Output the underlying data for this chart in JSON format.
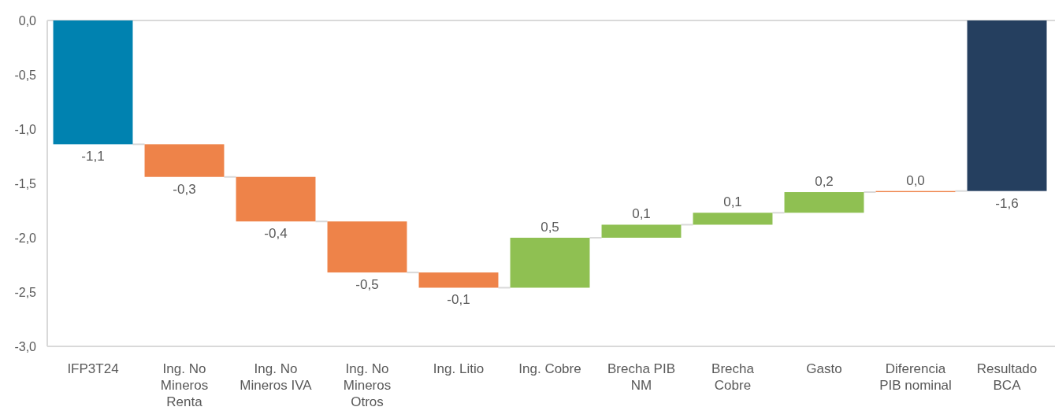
{
  "chart_data": {
    "type": "bar",
    "categories": [
      "IFP3T24",
      "Ing. No Mineros Renta",
      "Ing. No Mineros IVA",
      "Ing. No Mineros Otros",
      "Ing. Litio",
      "Ing. Cobre",
      "Brecha PIB NM",
      "Brecha Cobre",
      "Gasto",
      "Diferencia PIB nominal",
      "Resultado BCA"
    ],
    "values": [
      -1.14,
      -0.3,
      -0.41,
      -0.47,
      -0.14,
      0.46,
      0.12,
      0.11,
      0.19,
      0.01,
      -1.57
    ],
    "base": [
      0,
      -1.14,
      -1.44,
      -1.85,
      -2.32,
      -2.46,
      -2.0,
      -1.88,
      -1.77,
      -1.58,
      0
    ],
    "colors": [
      "#0082b0",
      "#ee8349",
      "#ee8349",
      "#ee8349",
      "#ee8349",
      "#8fc052",
      "#8fc052",
      "#8fc052",
      "#8fc052",
      "#ee8349",
      "#253f5f"
    ],
    "value_labels": [
      "-1,1",
      "-0,3",
      "-0,4",
      "-0,5",
      "-0,1",
      "0,5",
      "0,1",
      "0,1",
      "0,2",
      "0,0",
      "-1,6"
    ],
    "ylim": [
      -3,
      0
    ],
    "yticks": [
      {
        "value": -3,
        "label": "-3,0"
      },
      {
        "value": -2.5,
        "label": "-2,5"
      },
      {
        "value": -2,
        "label": "-2,0"
      },
      {
        "value": -1.5,
        "label": "-1,5"
      },
      {
        "value": -1,
        "label": "-1,0"
      },
      {
        "value": -0.5,
        "label": "-0,5"
      },
      {
        "value": 0,
        "label": "0,0"
      }
    ]
  }
}
